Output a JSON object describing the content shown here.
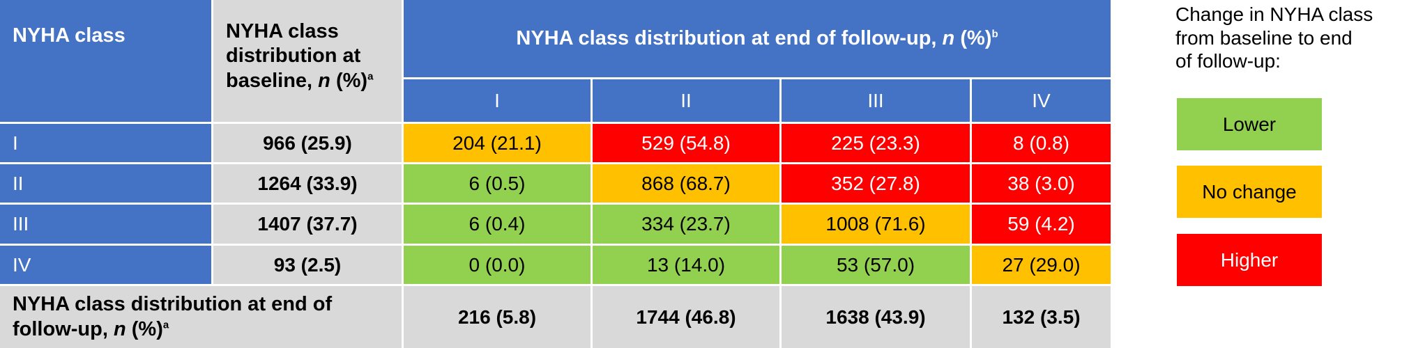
{
  "header": {
    "col1": "NYHA class",
    "col2_line1": "NYHA class",
    "col2_line2": "distribution at",
    "col2_line3_a": "baseline, ",
    "col2_line3_n": "n",
    "col2_line3_b": " (%)",
    "col2_sup": "a",
    "group_a": "NYHA class distribution at end of follow-up, ",
    "group_n": "n",
    "group_b": " (%)",
    "group_sup": "b",
    "sub": [
      "I",
      "II",
      "III",
      "IV"
    ]
  },
  "rows": [
    {
      "label": "I",
      "baseline": "966 (25.9)",
      "cells": [
        "204 (21.1)",
        "529 (54.8)",
        "225 (23.3)",
        "8 (0.8)"
      ],
      "change": [
        "No change",
        "Higher",
        "Higher",
        "Higher"
      ]
    },
    {
      "label": "II",
      "baseline": "1264 (33.9)",
      "cells": [
        "6 (0.5)",
        "868 (68.7)",
        "352 (27.8)",
        "38 (3.0)"
      ],
      "change": [
        "Lower",
        "No change",
        "Higher",
        "Higher"
      ]
    },
    {
      "label": "III",
      "baseline": "1407 (37.7)",
      "cells": [
        "6 (0.4)",
        "334 (23.7)",
        "1008 (71.6)",
        "59 (4.2)"
      ],
      "change": [
        "Lower",
        "Lower",
        "No change",
        "Higher"
      ]
    },
    {
      "label": "IV",
      "baseline": "93 (2.5)",
      "cells": [
        "0 (0.0)",
        "13 (14.0)",
        "53 (57.0)",
        "27 (29.0)"
      ],
      "change": [
        "Lower",
        "Lower",
        "Lower",
        "No change"
      ]
    }
  ],
  "footer": {
    "label_line1": "NYHA class distribution at end of",
    "label_line2_a": "follow-up, ",
    "label_line2_n": "n",
    "label_line2_b": " (%)",
    "label_sup": "a",
    "totals": [
      "216 (5.8)",
      "1744 (46.8)",
      "1638 (43.9)",
      "132 (3.5)"
    ]
  },
  "legend": {
    "title_line1": "Change in NYHA class",
    "title_line2": "from baseline to end",
    "title_line3": "of follow-up:",
    "items": [
      {
        "label": "Lower",
        "color": "#92D050"
      },
      {
        "label": "No change",
        "color": "#FFC000"
      },
      {
        "label": "Higher",
        "color": "#FF0000"
      }
    ]
  },
  "colors": {
    "header_blue": "#4472C4",
    "gray": "#D9D9D9",
    "lower": "#92D050",
    "no_change": "#FFC000",
    "higher": "#FF0000"
  }
}
